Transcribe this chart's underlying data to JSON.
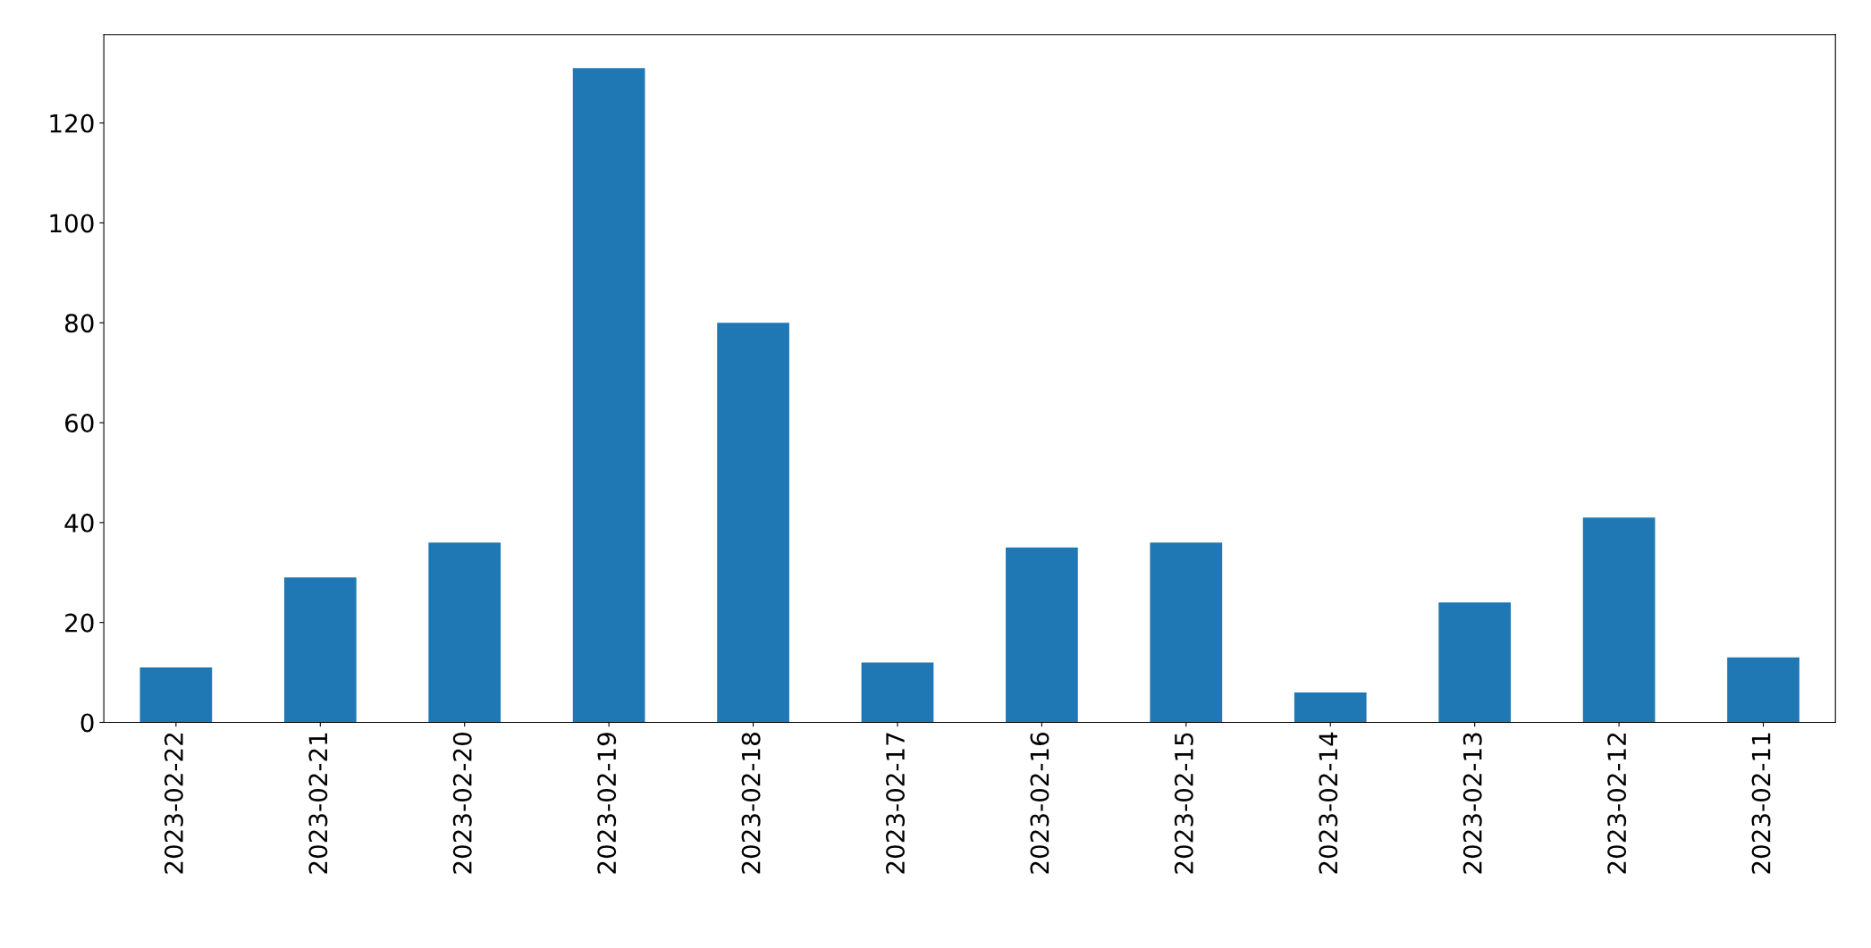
{
  "chart_data": {
    "type": "bar",
    "categories": [
      "2023-02-22",
      "2023-02-21",
      "2023-02-20",
      "2023-02-19",
      "2023-02-18",
      "2023-02-17",
      "2023-02-16",
      "2023-02-15",
      "2023-02-14",
      "2023-02-13",
      "2023-02-12",
      "2023-02-11"
    ],
    "values": [
      11,
      29,
      36,
      131,
      80,
      12,
      35,
      36,
      6,
      24,
      41,
      13
    ],
    "color": "#1f77b4",
    "ylim": [
      0,
      137.7
    ],
    "yticks": [
      0,
      20,
      40,
      60,
      80,
      100,
      120
    ],
    "grid": false,
    "legend": false
  }
}
